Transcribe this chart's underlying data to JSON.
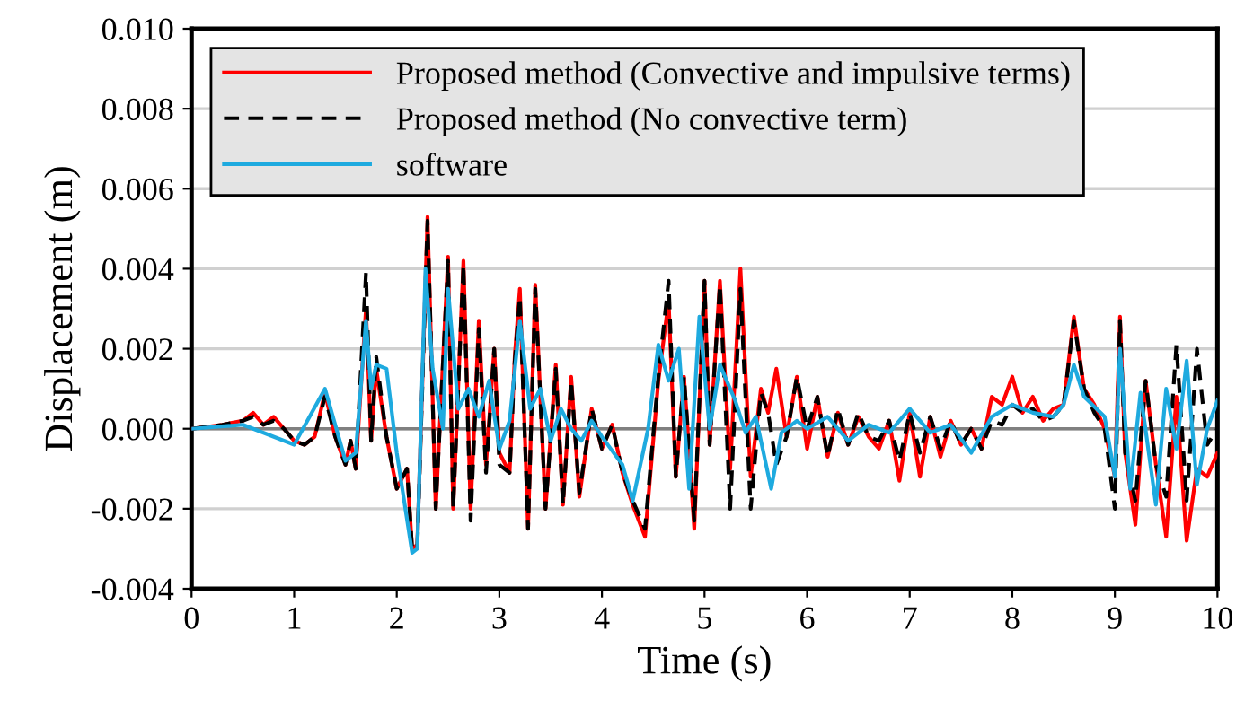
{
  "chart_data": {
    "type": "line",
    "xlabel": "Time (s)",
    "ylabel": "Displacement (m)",
    "xlim": [
      0,
      10
    ],
    "xticks": [
      0,
      1,
      2,
      3,
      4,
      5,
      6,
      7,
      8,
      9,
      10
    ],
    "ylim": [
      -0.004,
      0.01
    ],
    "yticks": [
      {
        "value": -0.004,
        "label": "-0.004"
      },
      {
        "value": -0.002,
        "label": "-0.002"
      },
      {
        "value": 0,
        "label": "0.000"
      },
      {
        "value": 0.002,
        "label": "0.002"
      },
      {
        "value": 0.004,
        "label": "0.004"
      },
      {
        "value": 0.006,
        "label": "0.006"
      },
      {
        "value": 0.008,
        "label": "0.008"
      },
      {
        "value": 0.01,
        "label": "0.010"
      }
    ],
    "grid": "y",
    "legend": "top left",
    "marker": "none",
    "series": [
      {
        "name": "Proposed method (Convective and impulsive terms)",
        "color": "#ff0000",
        "line_style": "solid",
        "x": [
          0,
          0.3,
          0.5,
          0.6,
          0.7,
          0.8,
          0.9,
          1.0,
          1.1,
          1.2,
          1.3,
          1.4,
          1.5,
          1.55,
          1.6,
          1.7,
          1.75,
          1.8,
          1.9,
          2.0,
          2.1,
          2.15,
          2.2,
          2.3,
          2.38,
          2.5,
          2.55,
          2.65,
          2.72,
          2.8,
          2.87,
          2.95,
          3.0,
          3.1,
          3.15,
          3.2,
          3.28,
          3.35,
          3.45,
          3.55,
          3.62,
          3.7,
          3.78,
          3.9,
          4.0,
          4.1,
          4.2,
          4.3,
          4.42,
          4.55,
          4.65,
          4.72,
          4.8,
          4.9,
          5.0,
          5.05,
          5.15,
          5.25,
          5.35,
          5.45,
          5.55,
          5.62,
          5.7,
          5.8,
          5.9,
          6.0,
          6.1,
          6.2,
          6.3,
          6.4,
          6.5,
          6.6,
          6.7,
          6.8,
          6.9,
          7.0,
          7.1,
          7.2,
          7.3,
          7.4,
          7.5,
          7.6,
          7.7,
          7.8,
          7.9,
          8.0,
          8.1,
          8.2,
          8.3,
          8.4,
          8.5,
          8.6,
          8.7,
          8.8,
          8.9,
          9.0,
          9.05,
          9.1,
          9.2,
          9.3,
          9.4,
          9.5,
          9.6,
          9.7,
          9.8,
          9.9,
          10.0
        ],
        "values": [
          0,
          0.0001,
          0.0002,
          0.0004,
          0.0001,
          0.0003,
          0.0,
          -0.0003,
          -0.0004,
          -0.0002,
          0.0009,
          -0.0002,
          -0.0009,
          -0.0003,
          -0.001,
          0.003,
          -0.0003,
          0.0015,
          -0.0002,
          -0.0015,
          -0.001,
          -0.003,
          -0.0029,
          0.0053,
          -0.002,
          0.0043,
          -0.002,
          0.0042,
          -0.002,
          0.0027,
          -0.0009,
          0.002,
          -0.0006,
          -0.0011,
          0.0018,
          0.0035,
          -0.0025,
          0.0036,
          -0.002,
          0.0016,
          -0.0019,
          0.0013,
          -0.0017,
          0.0005,
          -0.0005,
          0.0001,
          -0.0011,
          -0.0019,
          -0.0027,
          0.0012,
          0.0032,
          -0.0012,
          0.0013,
          -0.0025,
          0.0037,
          -0.0004,
          0.0037,
          -0.001,
          0.004,
          -0.0012,
          0.001,
          0.0004,
          0.0015,
          -0.0002,
          0.0013,
          -0.0005,
          0.0008,
          -0.0007,
          0.0004,
          -0.0004,
          0.0003,
          -0.0002,
          -0.0005,
          0.0002,
          -0.0013,
          0.0004,
          -0.0012,
          0.0003,
          -0.0007,
          0.0002,
          -0.0004,
          0.0,
          -0.0005,
          0.0008,
          0.0006,
          0.0013,
          0.0004,
          0.0008,
          0.0002,
          0.0005,
          0.0006,
          0.0028,
          0.001,
          0.0006,
          0.0,
          -0.0012,
          0.0028,
          -0.0006,
          -0.0024,
          0.0012,
          -0.0009,
          -0.0027,
          0.0008,
          -0.0028,
          -0.001,
          -0.0012,
          -0.0006
        ]
      },
      {
        "name": "Proposed method (No convective term)",
        "color": "#000000",
        "line_style": "dashed",
        "x": [
          0,
          0.3,
          0.5,
          0.6,
          0.7,
          0.8,
          0.9,
          1.0,
          1.1,
          1.2,
          1.3,
          1.4,
          1.5,
          1.55,
          1.6,
          1.7,
          1.75,
          1.8,
          1.9,
          2.0,
          2.1,
          2.15,
          2.2,
          2.3,
          2.38,
          2.5,
          2.55,
          2.65,
          2.72,
          2.8,
          2.87,
          2.95,
          3.0,
          3.1,
          3.15,
          3.2,
          3.28,
          3.35,
          3.45,
          3.55,
          3.62,
          3.7,
          3.78,
          3.9,
          4.0,
          4.1,
          4.2,
          4.3,
          4.42,
          4.55,
          4.65,
          4.72,
          4.8,
          4.9,
          5.0,
          5.05,
          5.15,
          5.25,
          5.35,
          5.45,
          5.55,
          5.62,
          5.7,
          5.8,
          5.9,
          6.0,
          6.1,
          6.2,
          6.3,
          6.4,
          6.5,
          6.6,
          6.7,
          6.8,
          6.9,
          7.0,
          7.1,
          7.2,
          7.3,
          7.4,
          7.5,
          7.6,
          7.7,
          7.8,
          7.9,
          8.0,
          8.1,
          8.2,
          8.3,
          8.4,
          8.5,
          8.6,
          8.7,
          8.8,
          8.9,
          9.0,
          9.05,
          9.1,
          9.2,
          9.3,
          9.4,
          9.5,
          9.6,
          9.7,
          9.8,
          9.9,
          10.0
        ],
        "values": [
          0,
          0.0001,
          0.0002,
          0.0003,
          0.0001,
          0.0002,
          0.0,
          -0.0003,
          -0.0004,
          -0.0002,
          0.0008,
          -0.0002,
          -0.0009,
          -0.0003,
          -0.001,
          0.0039,
          -0.0003,
          0.0018,
          -0.0002,
          -0.0015,
          -0.001,
          -0.003,
          -0.003,
          0.0052,
          -0.002,
          0.0042,
          -0.002,
          0.0041,
          -0.0023,
          0.0025,
          -0.0011,
          0.002,
          -0.0009,
          -0.0011,
          0.0017,
          0.0033,
          -0.0025,
          0.0035,
          -0.002,
          0.0015,
          -0.0019,
          0.0012,
          -0.0016,
          0.0005,
          -0.0005,
          0.0001,
          -0.0011,
          -0.0018,
          -0.0025,
          0.0013,
          0.0037,
          -0.0012,
          0.0013,
          -0.0023,
          0.0037,
          -0.0004,
          0.0036,
          -0.002,
          0.0035,
          -0.002,
          0.0009,
          0.0004,
          -0.0009,
          -0.0002,
          0.0013,
          0.0,
          0.0008,
          -0.0007,
          0.0005,
          -0.0004,
          0.0004,
          -0.0002,
          -0.0003,
          0.0002,
          -0.0008,
          0.0004,
          -0.0006,
          0.0003,
          -0.0005,
          0.0002,
          -0.0004,
          0.0,
          -0.0005,
          0.0002,
          0.0001,
          0.0006,
          0.0004,
          0.0005,
          0.0002,
          0.0003,
          0.0006,
          0.0027,
          0.001,
          0.0004,
          0.0,
          -0.002,
          0.0027,
          -0.0006,
          -0.0018,
          0.0012,
          -0.0009,
          -0.0017,
          0.0021,
          -0.0018,
          0.002,
          -0.0004,
          0.0
        ]
      },
      {
        "name": "software",
        "color": "#1eaadf",
        "line_style": "solid",
        "x": [
          0,
          0.5,
          1.0,
          1.3,
          1.5,
          1.6,
          1.7,
          1.75,
          1.8,
          1.9,
          2.0,
          2.15,
          2.2,
          2.28,
          2.35,
          2.45,
          2.5,
          2.6,
          2.7,
          2.8,
          2.9,
          3.0,
          3.1,
          3.2,
          3.3,
          3.4,
          3.5,
          3.6,
          3.7,
          3.8,
          3.9,
          4.0,
          4.2,
          4.3,
          4.45,
          4.55,
          4.65,
          4.75,
          4.85,
          4.95,
          5.05,
          5.15,
          5.3,
          5.4,
          5.5,
          5.65,
          5.75,
          5.9,
          6.0,
          6.2,
          6.4,
          6.6,
          6.8,
          7.0,
          7.2,
          7.4,
          7.6,
          7.8,
          8.0,
          8.2,
          8.4,
          8.5,
          8.6,
          8.7,
          8.9,
          9.0,
          9.05,
          9.15,
          9.25,
          9.4,
          9.5,
          9.6,
          9.7,
          9.8,
          9.9,
          10.0
        ],
        "values": [
          0,
          0.0001,
          -0.0004,
          0.001,
          -0.0008,
          -0.0006,
          0.0027,
          0.001,
          0.0016,
          0.0015,
          -0.0006,
          -0.0031,
          -0.003,
          0.004,
          0.0015,
          0.0,
          0.0035,
          0.0005,
          0.001,
          0.0003,
          0.0012,
          -0.0005,
          0.0002,
          0.0027,
          0.0005,
          0.001,
          -0.0003,
          0.0005,
          0.0,
          -0.0003,
          0.0002,
          -0.0002,
          -0.0009,
          -0.0018,
          0.0,
          0.0021,
          0.0012,
          0.002,
          -0.0015,
          0.0028,
          0.0,
          0.0016,
          0.0007,
          -0.0001,
          0.0003,
          -0.0015,
          -0.0001,
          0.0002,
          0.0,
          0.0003,
          -0.0003,
          0.0001,
          -0.0001,
          0.0005,
          -0.0001,
          0.0001,
          -0.0006,
          0.0003,
          0.0006,
          0.0004,
          0.0003,
          0.0006,
          0.0016,
          0.0008,
          0.0003,
          -0.0012,
          0.002,
          -0.0015,
          0.0009,
          -0.0019,
          0.001,
          -0.0005,
          0.0017,
          -0.0014,
          0.0,
          0.0007
        ]
      }
    ]
  }
}
